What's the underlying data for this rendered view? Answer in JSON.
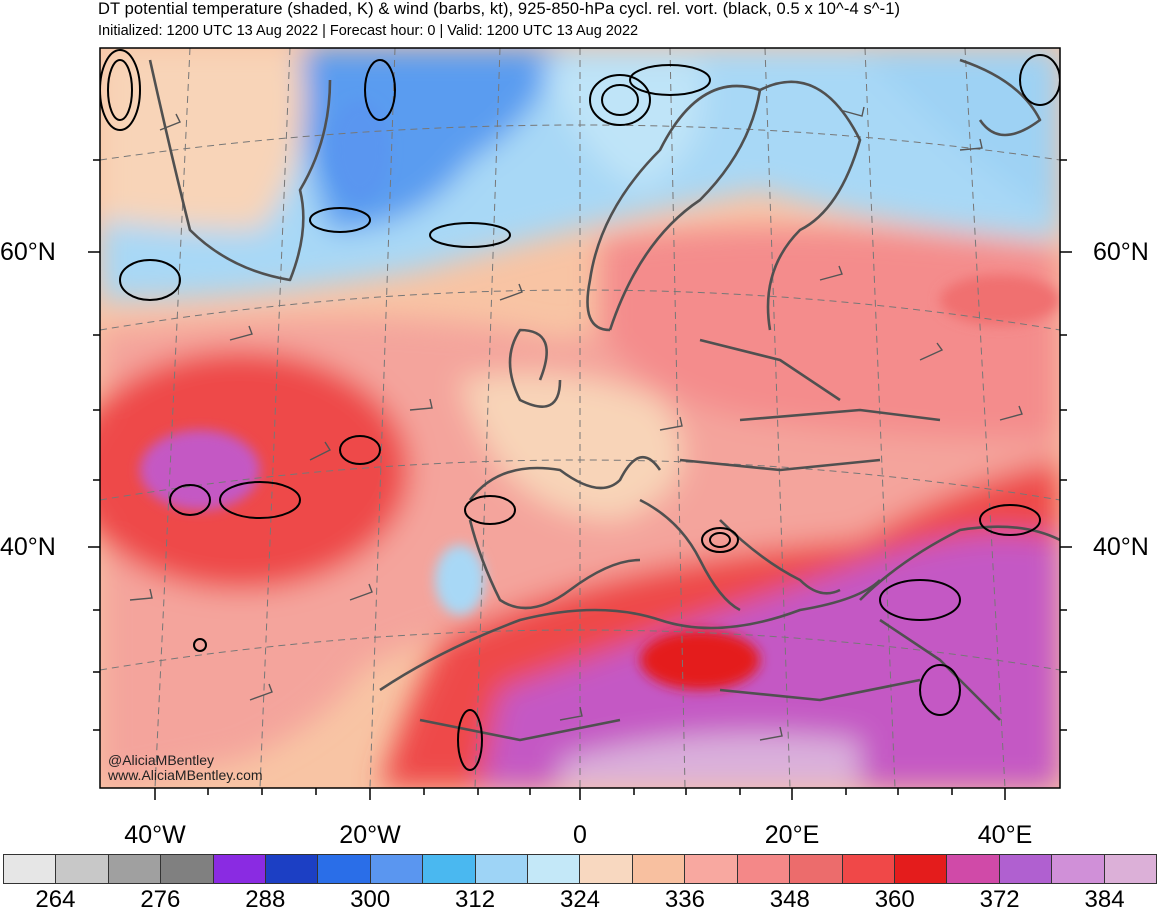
{
  "title": "DT potential temperature (shaded, K) & wind (barbs, kt), 925-850-hPa cycl. rel. vort. (black, 0.5 x 10^-4 s^-1)",
  "subtitle": "Initialized: 1200 UTC 13 Aug 2022 | Forecast hour: 0 | Valid: 1200 UTC 13 Aug 2022",
  "latitude_labels": {
    "lat60_left": "60°N",
    "lat60_right": "60°N",
    "lat40_left": "40°N",
    "lat40_right": "40°N"
  },
  "longitude_labels": {
    "w40": "40°W",
    "w20": "20°W",
    "zero": "0",
    "e20": "20°E",
    "e40": "40°E"
  },
  "watermark": {
    "handle": "@AliciaMBentley",
    "website": "www.AliciaMBentley.com"
  },
  "colorbar": {
    "colors": [
      "#e6e6e6",
      "#c8c8c8",
      "#a0a0a0",
      "#808080",
      "#8a2be2",
      "#1c3fc4",
      "#2a6ee8",
      "#5a96f0",
      "#4ab8f0",
      "#9ed4f6",
      "#c4e8f8",
      "#f8d8c0",
      "#f8c0a0",
      "#f8a8a0",
      "#f48888",
      "#ec6c6c",
      "#f04848",
      "#e41c1c",
      "#d04aa8",
      "#b060d0",
      "#d090d8",
      "#dcb0d8"
    ],
    "tick_labels": [
      "264",
      "276",
      "288",
      "300",
      "312",
      "324",
      "336",
      "348",
      "360",
      "372",
      "384"
    ]
  },
  "legend_colors": {
    "cold_blue": "#5a9cf0",
    "light_blue": "#a8d8f6",
    "peach": "#f8d4b8",
    "salmon": "#f4a49c",
    "red": "#ee4a48",
    "magenta": "#c458c4",
    "vorticity": "#000000",
    "coastline": "#505050",
    "gridline": "#777777"
  }
}
